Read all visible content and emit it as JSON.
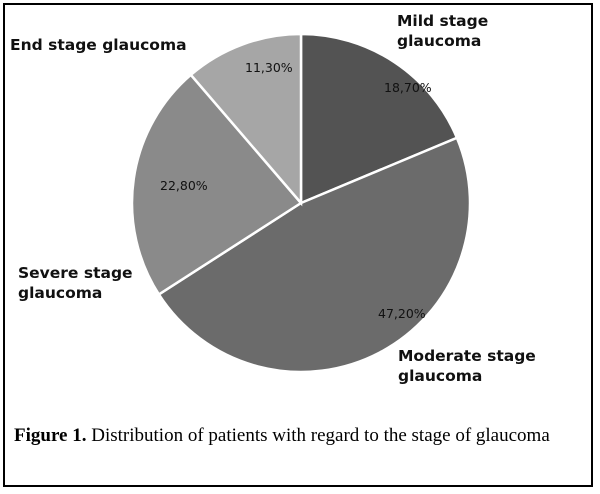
{
  "chart_data": {
    "type": "pie",
    "categories": [
      "Mild stage glaucoma",
      "Moderate stage glaucoma",
      "Severe stage glaucoma",
      "End stage glaucoma"
    ],
    "values": [
      18.7,
      47.2,
      22.8,
      11.3
    ],
    "value_labels": [
      "18,70%",
      "47,20%",
      "22,80%",
      "11,30%"
    ],
    "category_labels": [
      [
        "Mild stage",
        "glaucoma"
      ],
      [
        "Moderate stage",
        "glaucoma"
      ],
      [
        "Severe stage",
        "glaucoma"
      ],
      [
        "End stage glaucoma"
      ]
    ],
    "colors": [
      "#535353",
      "#6b6b6b",
      "#8a8a8a",
      "#a6a6a6"
    ],
    "start_angle": "12 o'clock, clockwise"
  },
  "caption": {
    "label": "Figure 1.",
    "text": "Distribution of patients with regard to the stage of glaucoma"
  }
}
